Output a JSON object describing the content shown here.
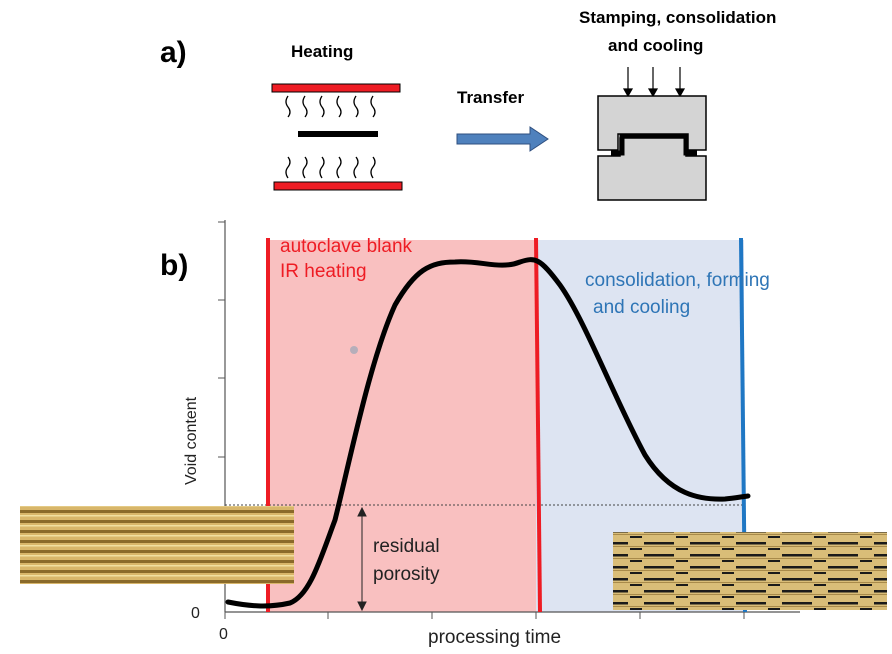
{
  "panel_a": {
    "label": "a)",
    "heating": "Heating",
    "transfer": "Transfer",
    "stamping_line1": "Stamping, consolidation",
    "stamping_line2": "and cooling"
  },
  "panel_b": {
    "label": "b)",
    "phase1_line1": "autoclave blank",
    "phase1_line2": "IR heating",
    "phase2_line1": "consolidation, forming",
    "phase2_line2": "and cooling",
    "residual_line1": "residual",
    "residual_line2": "porosity",
    "ylabel": "Void content",
    "xlabel": "processing time",
    "x_zero": "0",
    "y_zero": "0"
  },
  "colors": {
    "heater": "#ee1c24",
    "transfer_arrow": "#4f81bd",
    "heating_region": "#f9c0c0",
    "cooling_region": "#dde4f2",
    "heating_line": "#ee1c24",
    "cooling_line": "#1f77c4",
    "curve": "#000000",
    "phase2_text": "#2e75b6",
    "die": "#d4d4d4"
  },
  "chart_data": {
    "type": "line",
    "xlabel": "processing time",
    "ylabel": "Void content",
    "x_ticks": [
      "0"
    ],
    "y_ticks": [
      "0"
    ],
    "series": [
      {
        "x": [
          0,
          0.05,
          0.1,
          0.2,
          0.3,
          0.37,
          0.45,
          0.55,
          0.63,
          0.7,
          0.8,
          0.9,
          0.96
        ],
        "y": [
          0.02,
          0.01,
          0.02,
          0.2,
          0.7,
          0.95,
          1.0,
          0.99,
          1.0,
          0.95,
          0.6,
          0.29,
          0.27
        ]
      }
    ],
    "regions": [
      {
        "label": "autoclave blank IR heating"
      },
      {
        "label": "consolidation, forming and cooling"
      }
    ]
  }
}
